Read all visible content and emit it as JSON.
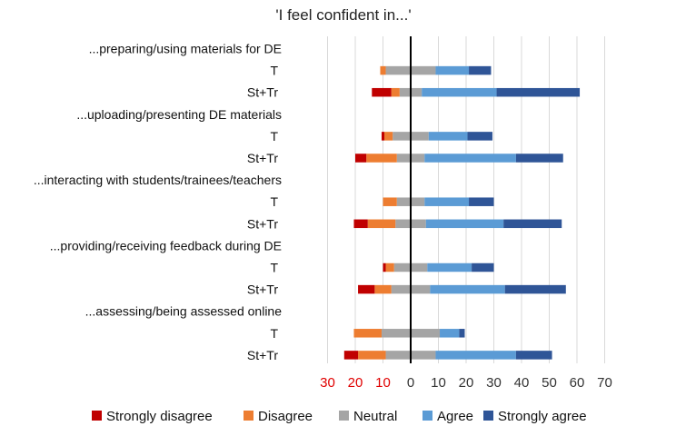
{
  "chart_data": {
    "type": "bar",
    "orientation": "horizontal",
    "stacking": "diverging",
    "title": "'I feel confident in...'",
    "xlim": [
      -30,
      70
    ],
    "x_ticks": [
      {
        "value": -30,
        "label": "30"
      },
      {
        "value": -20,
        "label": "20"
      },
      {
        "value": -10,
        "label": "10"
      },
      {
        "value": 0,
        "label": "0"
      },
      {
        "value": 10,
        "label": "10"
      },
      {
        "value": 20,
        "label": "20"
      },
      {
        "value": 30,
        "label": "30"
      },
      {
        "value": 40,
        "label": "40"
      },
      {
        "value": 50,
        "label": "50"
      },
      {
        "value": 60,
        "label": "60"
      },
      {
        "value": 70,
        "label": "70"
      }
    ],
    "negative_tick_color": "#e00000",
    "positive_tick_color": "#333333",
    "gridlines": true,
    "legend_position": "bottom",
    "series": [
      {
        "name": "Strongly disagree",
        "color": "#c00000"
      },
      {
        "name": "Disagree",
        "color": "#ed7d31"
      },
      {
        "name": "Neutral",
        "color": "#a5a5a5"
      },
      {
        "name": "Agree",
        "color": "#5b9bd5"
      },
      {
        "name": "Strongly agree",
        "color": "#2f5597"
      }
    ],
    "rows": [
      {
        "label": "...preparing/using materials for DE",
        "is_header": true
      },
      {
        "label": "T",
        "values": [
          0,
          2,
          18,
          12,
          8
        ]
      },
      {
        "label": "St+Tr",
        "values": [
          7,
          3,
          8,
          27,
          30
        ]
      },
      {
        "label": "...uploading/presenting DE materials",
        "is_header": true
      },
      {
        "label": "T",
        "values": [
          1,
          3,
          13,
          14,
          9
        ]
      },
      {
        "label": "St+Tr",
        "values": [
          4,
          11,
          10,
          33,
          17
        ]
      },
      {
        "label": "...interacting with students/trainees/teachers",
        "is_header": true
      },
      {
        "label": "T",
        "values": [
          0,
          5,
          10,
          16,
          9
        ]
      },
      {
        "label": "St+Tr",
        "values": [
          5,
          10,
          11,
          28,
          21
        ]
      },
      {
        "label": "...providing/receiving feedback during DE",
        "is_header": true
      },
      {
        "label": "T",
        "values": [
          1,
          3,
          12,
          16,
          8
        ]
      },
      {
        "label": "St+Tr",
        "values": [
          6,
          6,
          14,
          27,
          22
        ]
      },
      {
        "label": "...assessing/being assessed online",
        "is_header": true
      },
      {
        "label": "T",
        "values": [
          0,
          10,
          21,
          7,
          2
        ]
      },
      {
        "label": "St+Tr",
        "values": [
          5,
          10,
          18,
          29,
          13
        ]
      }
    ]
  }
}
